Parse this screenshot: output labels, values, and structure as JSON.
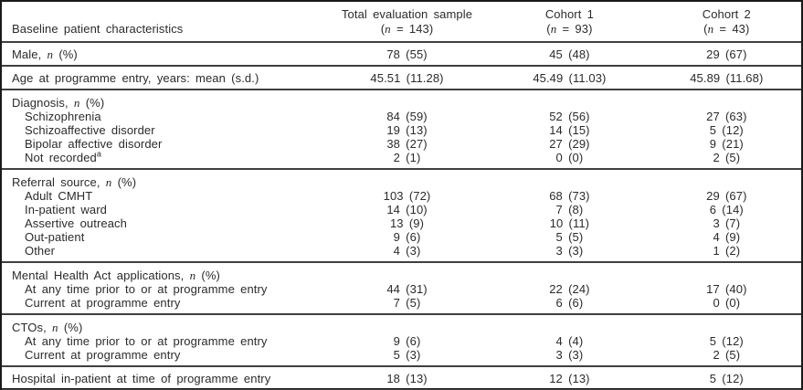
{
  "table": {
    "header_label": "Baseline patient characteristics",
    "columns": [
      {
        "title": "Total evaluation sample",
        "subtitle": "(n = 143)"
      },
      {
        "title": "Cohort 1",
        "subtitle": "(n = 93)"
      },
      {
        "title": "Cohort 2",
        "subtitle": "(n = 43)"
      }
    ],
    "rows": [
      {
        "type": "data",
        "label": "Male, n (%)",
        "values": [
          "78 (55)",
          "45 (48)",
          "29 (67)"
        ],
        "rule": true
      },
      {
        "type": "data",
        "label": "Age at programme entry, years: mean (s.d.)",
        "values": [
          "45.51 (11.28)",
          "45.49 (11.03)",
          "45.89 (11.68)"
        ],
        "rule": true
      },
      {
        "type": "group",
        "label": "Diagnosis, n (%)"
      },
      {
        "type": "sub",
        "label": "Schizophrenia",
        "values": [
          "84 (59)",
          "52 (56)",
          "27 (63)"
        ]
      },
      {
        "type": "sub",
        "label": "Schizoaffective disorder",
        "values": [
          "19 (13)",
          "14 (15)",
          "5 (12)"
        ]
      },
      {
        "type": "sub",
        "label": "Bipolar affective disorder",
        "values": [
          "38 (27)",
          "27 (29)",
          "9 (21)"
        ]
      },
      {
        "type": "sub",
        "label": "Not recorded",
        "sup": "a",
        "values": [
          "2 (1)",
          "0 (0)",
          "2 (5)"
        ],
        "rule": true
      },
      {
        "type": "group",
        "label": "Referral source, n (%)"
      },
      {
        "type": "sub",
        "label": "Adult CMHT",
        "values": [
          "103 (72)",
          "68 (73)",
          "29 (67)"
        ]
      },
      {
        "type": "sub",
        "label": "In-patient ward",
        "values": [
          "14 (10)",
          "7 (8)",
          "6 (14)"
        ]
      },
      {
        "type": "sub",
        "label": "Assertive outreach",
        "values": [
          "13 (9)",
          "10 (11)",
          "3 (7)"
        ]
      },
      {
        "type": "sub",
        "label": "Out-patient",
        "values": [
          "9 (6)",
          "5 (5)",
          "4 (9)"
        ]
      },
      {
        "type": "sub",
        "label": "Other",
        "values": [
          "4 (3)",
          "3 (3)",
          "1 (2)"
        ],
        "rule": true
      },
      {
        "type": "group",
        "label": "Mental Health Act applications, n (%)"
      },
      {
        "type": "sub",
        "label": "At any time prior to or at programme entry",
        "values": [
          "44 (31)",
          "22 (24)",
          "17 (40)"
        ]
      },
      {
        "type": "sub",
        "label": "Current at programme entry",
        "values": [
          "7 (5)",
          "6 (6)",
          "0 (0)"
        ],
        "rule": true
      },
      {
        "type": "group",
        "label": "CTOs, n (%)"
      },
      {
        "type": "sub",
        "label": "At any time prior to or at programme entry",
        "values": [
          "9 (6)",
          "4 (4)",
          "5 (12)"
        ]
      },
      {
        "type": "sub",
        "label": "Current at programme entry",
        "values": [
          "5 (3)",
          "3 (3)",
          "2 (5)"
        ],
        "rule": true
      },
      {
        "type": "data",
        "label": "Hospital in-patient at time of programme entry",
        "values": [
          "18 (13)",
          "12 (13)",
          "5 (12)"
        ],
        "rule": true
      }
    ]
  }
}
